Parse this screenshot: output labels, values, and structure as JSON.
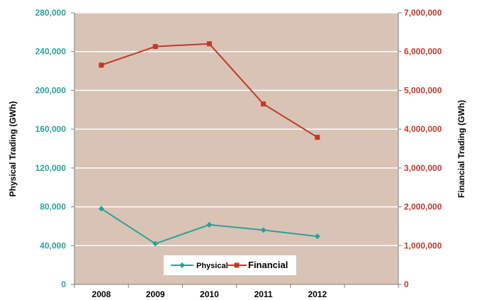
{
  "chart_data": {
    "type": "line",
    "categories": [
      "2008",
      "2009",
      "2010",
      "2011",
      "2012"
    ],
    "series": [
      {
        "name": "Physical",
        "axis": "left",
        "color": "#2aa198",
        "marker": "diamond",
        "values": [
          78000,
          42000,
          61500,
          56000,
          49500
        ]
      },
      {
        "name": "Financial",
        "axis": "right",
        "color": "#c0392b",
        "marker": "square",
        "values": [
          5650000,
          6130000,
          6200000,
          4650000,
          3790000
        ]
      }
    ],
    "ylabel_left": "Physical Trading (GWh)",
    "ylabel_right": "Financial Trading (GWh)",
    "ylim_left": [
      0,
      280000
    ],
    "ylim_right": [
      0,
      7000000
    ],
    "yticks_left": [
      "0",
      "40,000",
      "80,000",
      "120,000",
      "160,000",
      "200,000",
      "240,000",
      "280,000"
    ],
    "yticks_right": [
      "0",
      "1,000,000",
      "2,000,000",
      "3,000,000",
      "4,000,000",
      "5,000,000",
      "6,000,000",
      "7,000,000"
    ],
    "plot_background": "#d9c3b5",
    "gridlines": true,
    "legend_position": "bottom-center"
  }
}
